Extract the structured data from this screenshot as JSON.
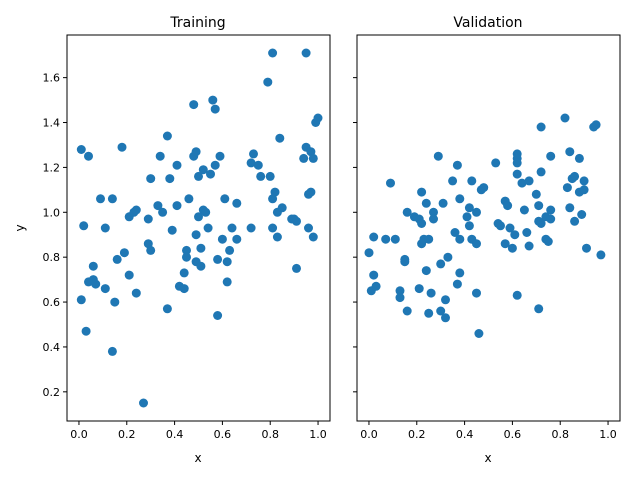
{
  "chart_data": [
    {
      "type": "scatter",
      "title": "Training",
      "xlabel": "x",
      "ylabel": "y",
      "xlim": [
        -0.05,
        1.05
      ],
      "ylim": [
        0.07,
        1.79
      ],
      "xticks": [
        "0.0",
        "0.2",
        "0.4",
        "0.6",
        "0.8",
        "1.0"
      ],
      "yticks": [
        "0.2",
        "0.4",
        "0.6",
        "0.8",
        "1.0",
        "1.2",
        "1.4",
        "1.6"
      ],
      "color": "#1f77b4",
      "grid": false,
      "points": [
        [
          0.01,
          1.28
        ],
        [
          0.04,
          1.25
        ],
        [
          0.01,
          0.61
        ],
        [
          0.02,
          0.94
        ],
        [
          0.03,
          0.47
        ],
        [
          0.04,
          0.69
        ],
        [
          0.06,
          0.76
        ],
        [
          0.06,
          0.7
        ],
        [
          0.07,
          0.68
        ],
        [
          0.09,
          1.06
        ],
        [
          0.11,
          0.93
        ],
        [
          0.11,
          0.66
        ],
        [
          0.14,
          1.06
        ],
        [
          0.14,
          0.38
        ],
        [
          0.15,
          0.6
        ],
        [
          0.16,
          0.79
        ],
        [
          0.18,
          1.29
        ],
        [
          0.19,
          0.82
        ],
        [
          0.21,
          0.98
        ],
        [
          0.21,
          0.72
        ],
        [
          0.23,
          1.0
        ],
        [
          0.24,
          1.01
        ],
        [
          0.24,
          0.64
        ],
        [
          0.27,
          0.15
        ],
        [
          0.29,
          0.97
        ],
        [
          0.29,
          0.86
        ],
        [
          0.3,
          0.83
        ],
        [
          0.3,
          1.15
        ],
        [
          0.33,
          1.03
        ],
        [
          0.34,
          1.25
        ],
        [
          0.35,
          1.0
        ],
        [
          0.37,
          1.34
        ],
        [
          0.37,
          0.57
        ],
        [
          0.38,
          1.15
        ],
        [
          0.39,
          0.92
        ],
        [
          0.41,
          1.21
        ],
        [
          0.41,
          1.03
        ],
        [
          0.42,
          0.67
        ],
        [
          0.44,
          0.73
        ],
        [
          0.44,
          0.66
        ],
        [
          0.45,
          0.83
        ],
        [
          0.45,
          0.8
        ],
        [
          0.46,
          1.06
        ],
        [
          0.48,
          1.25
        ],
        [
          0.48,
          1.48
        ],
        [
          0.49,
          1.27
        ],
        [
          0.49,
          0.9
        ],
        [
          0.49,
          0.78
        ],
        [
          0.5,
          1.16
        ],
        [
          0.5,
          0.98
        ],
        [
          0.51,
          0.76
        ],
        [
          0.51,
          0.84
        ],
        [
          0.52,
          1.19
        ],
        [
          0.52,
          1.01
        ],
        [
          0.53,
          1.0
        ],
        [
          0.54,
          0.93
        ],
        [
          0.55,
          1.17
        ],
        [
          0.56,
          1.5
        ],
        [
          0.57,
          1.46
        ],
        [
          0.57,
          1.21
        ],
        [
          0.58,
          0.54
        ],
        [
          0.58,
          0.79
        ],
        [
          0.59,
          1.25
        ],
        [
          0.6,
          0.88
        ],
        [
          0.61,
          1.06
        ],
        [
          0.62,
          0.69
        ],
        [
          0.62,
          0.78
        ],
        [
          0.63,
          0.83
        ],
        [
          0.64,
          0.93
        ],
        [
          0.66,
          0.88
        ],
        [
          0.66,
          1.04
        ],
        [
          0.72,
          0.93
        ],
        [
          0.72,
          1.22
        ],
        [
          0.73,
          1.26
        ],
        [
          0.75,
          1.21
        ],
        [
          0.76,
          1.16
        ],
        [
          0.79,
          1.58
        ],
        [
          0.8,
          1.16
        ],
        [
          0.81,
          1.71
        ],
        [
          0.81,
          1.06
        ],
        [
          0.81,
          0.93
        ],
        [
          0.82,
          1.09
        ],
        [
          0.83,
          1.0
        ],
        [
          0.83,
          0.89
        ],
        [
          0.84,
          1.33
        ],
        [
          0.85,
          1.02
        ],
        [
          0.89,
          0.97
        ],
        [
          0.9,
          0.97
        ],
        [
          0.91,
          0.75
        ],
        [
          0.91,
          0.96
        ],
        [
          0.94,
          1.24
        ],
        [
          0.95,
          1.71
        ],
        [
          0.95,
          1.29
        ],
        [
          0.96,
          1.08
        ],
        [
          0.96,
          0.93
        ],
        [
          0.97,
          1.09
        ],
        [
          0.97,
          1.27
        ],
        [
          0.98,
          1.24
        ],
        [
          0.98,
          0.89
        ],
        [
          0.99,
          1.4
        ],
        [
          1.0,
          1.42
        ]
      ]
    },
    {
      "type": "scatter",
      "title": "Validation",
      "xlabel": "x",
      "ylabel": "",
      "xlim": [
        -0.05,
        1.05
      ],
      "ylim": [
        0.07,
        1.79
      ],
      "xticks": [
        "0.0",
        "0.2",
        "0.4",
        "0.6",
        "0.8",
        "1.0"
      ],
      "yticks": [
        "0.2",
        "0.4",
        "0.6",
        "0.8",
        "1.0",
        "1.2",
        "1.4",
        "1.6"
      ],
      "color": "#1f77b4",
      "grid": false,
      "points": [
        [
          0.0,
          0.82
        ],
        [
          0.01,
          0.65
        ],
        [
          0.02,
          0.72
        ],
        [
          0.02,
          0.89
        ],
        [
          0.03,
          0.67
        ],
        [
          0.07,
          0.88
        ],
        [
          0.09,
          1.13
        ],
        [
          0.11,
          0.88
        ],
        [
          0.13,
          0.62
        ],
        [
          0.13,
          0.65
        ],
        [
          0.15,
          0.79
        ],
        [
          0.15,
          0.78
        ],
        [
          0.16,
          0.56
        ],
        [
          0.16,
          1.0
        ],
        [
          0.19,
          0.98
        ],
        [
          0.21,
          0.97
        ],
        [
          0.21,
          0.66
        ],
        [
          0.22,
          1.09
        ],
        [
          0.22,
          0.95
        ],
        [
          0.22,
          0.86
        ],
        [
          0.23,
          0.88
        ],
        [
          0.24,
          0.74
        ],
        [
          0.24,
          1.04
        ],
        [
          0.25,
          0.55
        ],
        [
          0.25,
          0.88
        ],
        [
          0.26,
          0.64
        ],
        [
          0.27,
          1.0
        ],
        [
          0.27,
          0.97
        ],
        [
          0.29,
          1.25
        ],
        [
          0.3,
          0.77
        ],
        [
          0.3,
          0.56
        ],
        [
          0.31,
          1.04
        ],
        [
          0.32,
          0.61
        ],
        [
          0.32,
          0.53
        ],
        [
          0.33,
          0.8
        ],
        [
          0.35,
          1.14
        ],
        [
          0.36,
          0.91
        ],
        [
          0.37,
          0.68
        ],
        [
          0.37,
          1.21
        ],
        [
          0.38,
          0.73
        ],
        [
          0.38,
          1.06
        ],
        [
          0.38,
          0.88
        ],
        [
          0.41,
          0.98
        ],
        [
          0.42,
          1.02
        ],
        [
          0.42,
          0.94
        ],
        [
          0.43,
          0.88
        ],
        [
          0.43,
          1.14
        ],
        [
          0.45,
          0.86
        ],
        [
          0.45,
          1.0
        ],
        [
          0.45,
          0.64
        ],
        [
          0.46,
          0.46
        ],
        [
          0.47,
          1.1
        ],
        [
          0.48,
          1.11
        ],
        [
          0.53,
          1.22
        ],
        [
          0.54,
          0.95
        ],
        [
          0.55,
          0.94
        ],
        [
          0.57,
          0.86
        ],
        [
          0.57,
          1.05
        ],
        [
          0.58,
          1.03
        ],
        [
          0.59,
          0.93
        ],
        [
          0.6,
          0.84
        ],
        [
          0.61,
          0.9
        ],
        [
          0.62,
          1.26
        ],
        [
          0.62,
          1.24
        ],
        [
          0.62,
          1.22
        ],
        [
          0.62,
          1.17
        ],
        [
          0.62,
          0.63
        ],
        [
          0.64,
          1.13
        ],
        [
          0.65,
          1.01
        ],
        [
          0.66,
          0.91
        ],
        [
          0.67,
          1.14
        ],
        [
          0.67,
          0.85
        ],
        [
          0.7,
          1.08
        ],
        [
          0.71,
          0.96
        ],
        [
          0.71,
          0.57
        ],
        [
          0.71,
          1.03
        ],
        [
          0.72,
          1.38
        ],
        [
          0.72,
          1.18
        ],
        [
          0.72,
          0.95
        ],
        [
          0.74,
          0.98
        ],
        [
          0.74,
          0.88
        ],
        [
          0.75,
          0.87
        ],
        [
          0.76,
          0.97
        ],
        [
          0.76,
          1.25
        ],
        [
          0.76,
          1.01
        ],
        [
          0.82,
          1.42
        ],
        [
          0.83,
          1.11
        ],
        [
          0.84,
          1.02
        ],
        [
          0.84,
          1.27
        ],
        [
          0.85,
          1.15
        ],
        [
          0.86,
          1.16
        ],
        [
          0.86,
          0.96
        ],
        [
          0.88,
          1.09
        ],
        [
          0.88,
          1.24
        ],
        [
          0.89,
          0.99
        ],
        [
          0.9,
          1.1
        ],
        [
          0.9,
          1.14
        ],
        [
          0.91,
          0.84
        ],
        [
          0.94,
          1.38
        ],
        [
          0.95,
          1.39
        ],
        [
          0.97,
          0.81
        ]
      ]
    }
  ]
}
